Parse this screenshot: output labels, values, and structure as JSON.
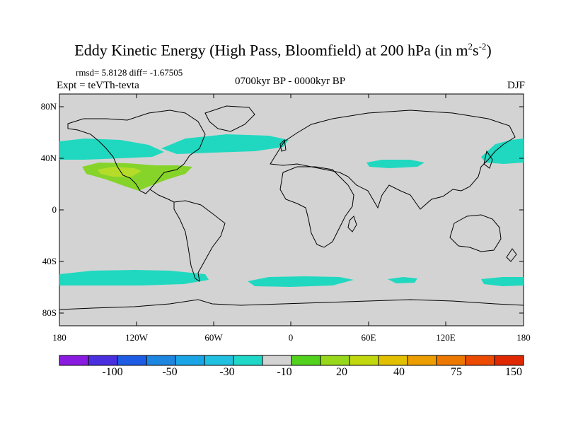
{
  "title_main": "Eddy Kinetic Energy (High Pass, Bloomfield) at 200 hPa (in m",
  "title_sup1": "2",
  "title_s": "s",
  "title_sup2": "-2",
  "title_close": ")",
  "stats": "rmsd= 5.8128 diff= -1.67505",
  "experiment": "Expt = teVTh-tevta",
  "period": "0700kyr BP - 0000kyr BP",
  "season": "DJF",
  "y_labels": [
    "80N",
    "40N",
    "0",
    "40S",
    "80S"
  ],
  "x_labels": [
    "180",
    "120W",
    "60W",
    "0",
    "60E",
    "120E",
    "180"
  ],
  "colorbar": {
    "labels": [
      "-100",
      "-50",
      "-30",
      "-10",
      "20",
      "40",
      "75",
      "150"
    ],
    "colors": [
      "#8a1ae0",
      "#4a2fe0",
      "#1f5ce6",
      "#1c86e0",
      "#1aa6e6",
      "#20c0e0",
      "#20d8c8",
      "#d3d3d3",
      "#52d21c",
      "#98d81a",
      "#c2d80e",
      "#e2c000",
      "#ec9e00",
      "#ec7800",
      "#ec4a00",
      "#e02800"
    ]
  },
  "map": {
    "land_ocean_color": "#d3d3d3",
    "teal": "#20d8c0",
    "green": "#86d42a",
    "lightgreen": "#b6dc2a"
  }
}
